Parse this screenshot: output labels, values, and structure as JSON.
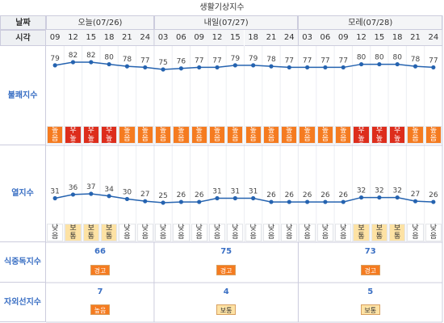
{
  "title": "생활기상지수",
  "date_label": "날짜",
  "time_label": "시각",
  "days": [
    {
      "label": "오늘(07/26)",
      "hours": [
        "09",
        "12",
        "15",
        "18",
        "21",
        "24"
      ]
    },
    {
      "label": "내일(07/27)",
      "hours": [
        "03",
        "06",
        "09",
        "12",
        "15",
        "18",
        "21",
        "24"
      ]
    },
    {
      "label": "모레(07/28)",
      "hours": [
        "03",
        "06",
        "09",
        "12",
        "15",
        "18",
        "21",
        "24"
      ]
    }
  ],
  "discomfort": {
    "label": "불쾌지수",
    "values": [
      79,
      82,
      82,
      80,
      78,
      77,
      75,
      76,
      77,
      77,
      79,
      79,
      78,
      77,
      77,
      77,
      77,
      80,
      80,
      80,
      78,
      77
    ],
    "levels": [
      "높음",
      "매우높음",
      "매우높음",
      "매우높음",
      "높음",
      "높음",
      "높음",
      "높음",
      "높음",
      "높음",
      "높음",
      "높음",
      "높음",
      "높음",
      "높음",
      "높음",
      "높음",
      "매우높음",
      "매우높음",
      "매우높음",
      "높음",
      "높음"
    ]
  },
  "heat": {
    "label": "열지수",
    "values": [
      31,
      36,
      37,
      34,
      30,
      27,
      25,
      26,
      26,
      31,
      31,
      31,
      26,
      26,
      26,
      26,
      26,
      32,
      32,
      32,
      27,
      26
    ],
    "levels": [
      "낮음",
      "보통",
      "보통",
      "보통",
      "낮음",
      "낮음",
      "낮음",
      "낮음",
      "낮음",
      "낮음",
      "낮음",
      "낮음",
      "낮음",
      "낮음",
      "낮음",
      "낮음",
      "낮음",
      "보통",
      "보통",
      "보통",
      "낮음",
      "낮음"
    ]
  },
  "food": {
    "label": "식중독지수",
    "values": [
      66,
      75,
      73
    ],
    "levels": [
      "경고",
      "경고",
      "경고"
    ]
  },
  "uv": {
    "label": "자외선지수",
    "values": [
      7,
      4,
      5
    ],
    "levels": [
      "높음",
      "보통",
      "보통"
    ]
  },
  "line_color": "#2563b0",
  "level_styles": {
    "높음": {
      "bg": "#f57b20",
      "fg": "#ffffff"
    },
    "매우높음": {
      "bg": "#dd2d1c",
      "fg": "#ffffff"
    },
    "보통": {
      "bg": "#fde2a4",
      "fg": "#333333"
    },
    "낮음": {
      "bg": "#ffffff",
      "fg": "#333333"
    },
    "경고": {
      "bg": "#f57b20",
      "fg": "#ffffff"
    }
  }
}
